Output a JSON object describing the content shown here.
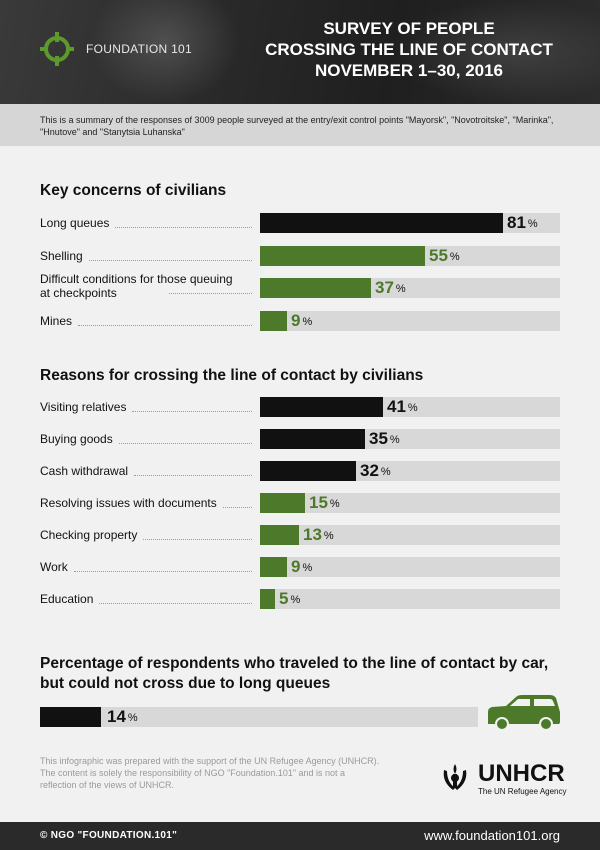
{
  "header": {
    "logo_text": "FOUNDATION 101",
    "title_lines": [
      "SURVEY OF PEOPLE",
      "CROSSING THE LINE OF CONTACT",
      "NOVEMBER 1–30, 2016"
    ]
  },
  "intro": "This is a summary of the responses of 3009 people surveyed at the entry/exit control points \"Mayorsk\", \"Novotroitske\", \"Marinka\", \"Hnutove\" and \"Stanytsia Luhanska\"",
  "colors": {
    "dark": "#111111",
    "green": "#4d7a2a",
    "track": "#d8d8d8"
  },
  "chart_data": [
    {
      "type": "bar",
      "title": "Key concerns of civilians",
      "unit": "%",
      "categories": [
        "Long queues",
        "Shelling",
        "Difficult conditions for those queuing at checkpoints",
        "Mines"
      ],
      "values": [
        81,
        55,
        37,
        9
      ],
      "bar_colors": [
        "dark",
        "green",
        "green",
        "green"
      ],
      "xlim": [
        0,
        100
      ]
    },
    {
      "type": "bar",
      "title": "Reasons for crossing the line of contact by civilians",
      "unit": "%",
      "categories": [
        "Visiting relatives",
        "Buying goods",
        "Cash withdrawal",
        "Resolving issues with documents",
        "Checking property",
        "Work",
        "Education"
      ],
      "values": [
        41,
        35,
        32,
        15,
        13,
        9,
        5
      ],
      "bar_colors": [
        "dark",
        "dark",
        "dark",
        "green",
        "green",
        "green",
        "green"
      ],
      "xlim": [
        0,
        50
      ]
    },
    {
      "type": "bar",
      "title": "Percentage of respondents who traveled to the line of contact by car, but could not cross due to long queues",
      "unit": "%",
      "categories": [
        ""
      ],
      "values": [
        14
      ],
      "bar_colors": [
        "dark"
      ],
      "xlim": [
        0,
        100
      ]
    }
  ],
  "footnote": "This infographic was prepared with the support of the UN Refugee Agency (UNHCR). The content is solely the responsibility of NGO \"Foundation.101\" and is not a reflection of the views of UNHCR.",
  "unhcr": {
    "name": "UNHCR",
    "subtitle": "The UN Refugee Agency"
  },
  "footer": {
    "copyright": "© NGO \"FOUNDATION.101\"",
    "website": "www.foundation101.org"
  }
}
